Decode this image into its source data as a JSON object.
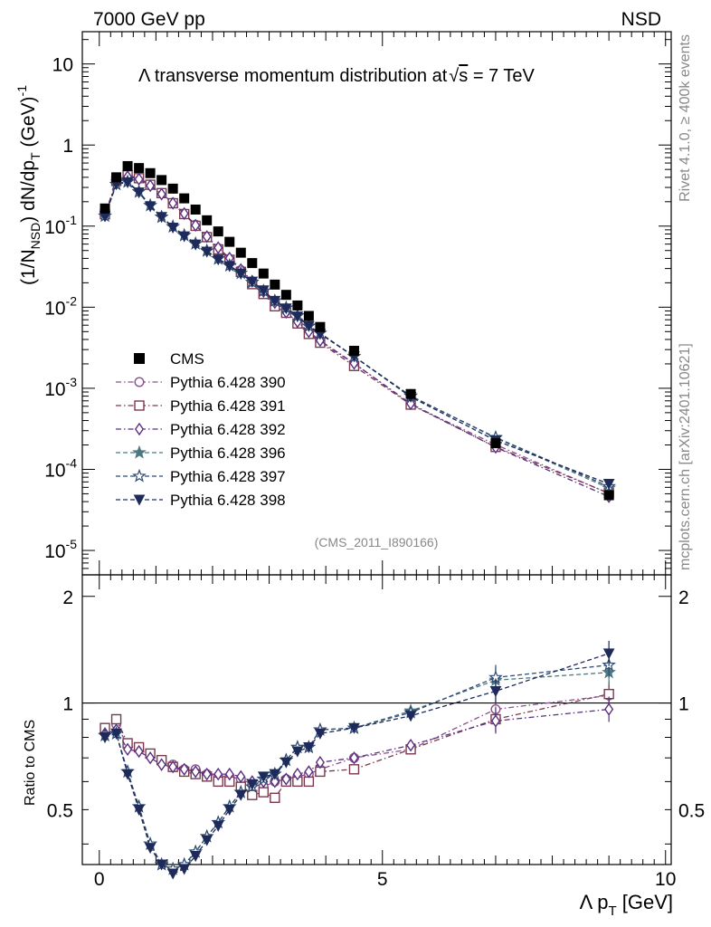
{
  "header": {
    "left": "7000 GeV pp",
    "right": "NSD"
  },
  "side_labels": {
    "rivet": "Rivet 4.1.0, ≥ 400k events",
    "mcplots": "mcplots.cern.ch [arXiv:2401.10621]"
  },
  "chart_data": {
    "type": "scatter",
    "title": "Λ transverse momentum distribution at √s = 7 TeV",
    "title_parts": {
      "main": "Λ transverse momentum distribution at",
      "sqrt": "√",
      "s": "s",
      "tail": " = 7 TeV"
    },
    "analysis_id": "(CMS_2011_I890166)",
    "xlabel": {
      "main": "Λ p",
      "sub": "T",
      "unit": " [GeV]"
    },
    "ylabel": {
      "a": "(1/N",
      "a_sub": "NSD",
      "b": ") dN/dp",
      "b_sub": "T",
      "c": " (GeV)",
      "c_sup": "-1"
    },
    "ratio_ylabel": "Ratio to CMS",
    "xlim": [
      -0.3,
      10.1
    ],
    "ylim": [
      5e-06,
      25
    ],
    "ratio_ylim": [
      0.35,
      2.3
    ],
    "xticks": [
      0,
      5,
      10
    ],
    "xtick_labels": [
      "0",
      "5",
      "10"
    ],
    "yticks_main": [
      {
        "value": 10,
        "label": "10"
      },
      {
        "value": 1,
        "label": "1"
      },
      {
        "value": 0.1,
        "label": "10",
        "exp": "-1"
      },
      {
        "value": 0.01,
        "label": "10",
        "exp": "-2"
      },
      {
        "value": 0.001,
        "label": "10",
        "exp": "-3"
      },
      {
        "value": 0.0001,
        "label": "10",
        "exp": "-4"
      },
      {
        "value": 1e-05,
        "label": "10",
        "exp": "-5"
      }
    ],
    "yticks_ratio": [
      {
        "value": 2,
        "label": "2"
      },
      {
        "value": 1,
        "label": "1"
      },
      {
        "value": 0.5,
        "label": "0.5"
      }
    ],
    "x": [
      0.1,
      0.3,
      0.5,
      0.7,
      0.9,
      1.1,
      1.3,
      1.5,
      1.7,
      1.9,
      2.1,
      2.3,
      2.5,
      2.7,
      2.9,
      3.1,
      3.3,
      3.5,
      3.7,
      3.9,
      4.5,
      5.5,
      7.0,
      9.0
    ],
    "data": {
      "name": "CMS",
      "values": [
        0.165,
        0.4,
        0.55,
        0.52,
        0.45,
        0.37,
        0.29,
        0.22,
        0.16,
        0.118,
        0.086,
        0.064,
        0.047,
        0.035,
        0.026,
        0.019,
        0.0142,
        0.0105,
        0.0078,
        0.0057,
        0.0029,
        0.00085,
        0.00021,
        4.8e-05
      ]
    },
    "series": [
      {
        "name": "Pythia 6.428 390",
        "color": "#8a4f8f",
        "marker": "circle",
        "dash": "6,3,1.5,3",
        "ratio": [
          0.84,
          0.87,
          0.76,
          0.74,
          0.71,
          0.69,
          0.67,
          0.65,
          0.65,
          0.63,
          0.62,
          0.62,
          0.61,
          0.59,
          0.58,
          0.6,
          0.61,
          0.62,
          0.63,
          0.65,
          0.7,
          0.74,
          0.96,
          1.05
        ]
      },
      {
        "name": "Pythia 6.428 391",
        "color": "#7a3a4e",
        "marker": "square",
        "dash": "6,3,1.5,3",
        "ratio": [
          0.85,
          0.9,
          0.77,
          0.75,
          0.72,
          0.69,
          0.66,
          0.64,
          0.63,
          0.62,
          0.6,
          0.6,
          0.58,
          0.55,
          0.56,
          0.54,
          0.6,
          0.6,
          0.6,
          0.64,
          0.65,
          0.74,
          0.9,
          1.06
        ]
      },
      {
        "name": "Pythia 6.428 392",
        "color": "#5a2f82",
        "marker": "diamond",
        "dash": "6,3,1.5,3",
        "ratio": [
          0.82,
          0.84,
          0.74,
          0.73,
          0.7,
          0.67,
          0.66,
          0.65,
          0.64,
          0.63,
          0.63,
          0.63,
          0.62,
          0.6,
          0.6,
          0.6,
          0.61,
          0.63,
          0.64,
          0.68,
          0.7,
          0.76,
          0.89,
          0.96
        ]
      },
      {
        "name": "Pythia 6.428 396",
        "color": "#4d7882",
        "marker": "star",
        "filled": true,
        "dash": "5,3",
        "ratio": [
          0.81,
          0.82,
          0.64,
          0.51,
          0.4,
          0.35,
          0.34,
          0.35,
          0.38,
          0.42,
          0.46,
          0.51,
          0.56,
          0.58,
          0.61,
          0.63,
          0.69,
          0.75,
          0.75,
          0.84,
          0.85,
          0.95,
          1.16,
          1.22
        ]
      },
      {
        "name": "Pythia 6.428 397",
        "color": "#2d4a73",
        "marker": "star",
        "filled": false,
        "dash": "5,3",
        "ratio": [
          0.81,
          0.82,
          0.64,
          0.51,
          0.4,
          0.35,
          0.34,
          0.35,
          0.38,
          0.42,
          0.46,
          0.51,
          0.56,
          0.58,
          0.61,
          0.63,
          0.69,
          0.75,
          0.75,
          0.84,
          0.85,
          0.94,
          1.18,
          1.28
        ]
      },
      {
        "name": "Pythia 6.428 398",
        "color": "#1e2a5a",
        "marker": "triangle-down",
        "dash": "5,3",
        "ratio": [
          0.8,
          0.82,
          0.63,
          0.5,
          0.39,
          0.35,
          0.33,
          0.34,
          0.37,
          0.41,
          0.45,
          0.5,
          0.55,
          0.59,
          0.62,
          0.63,
          0.68,
          0.73,
          0.75,
          0.82,
          0.85,
          0.92,
          1.08,
          1.38
        ]
      }
    ]
  }
}
